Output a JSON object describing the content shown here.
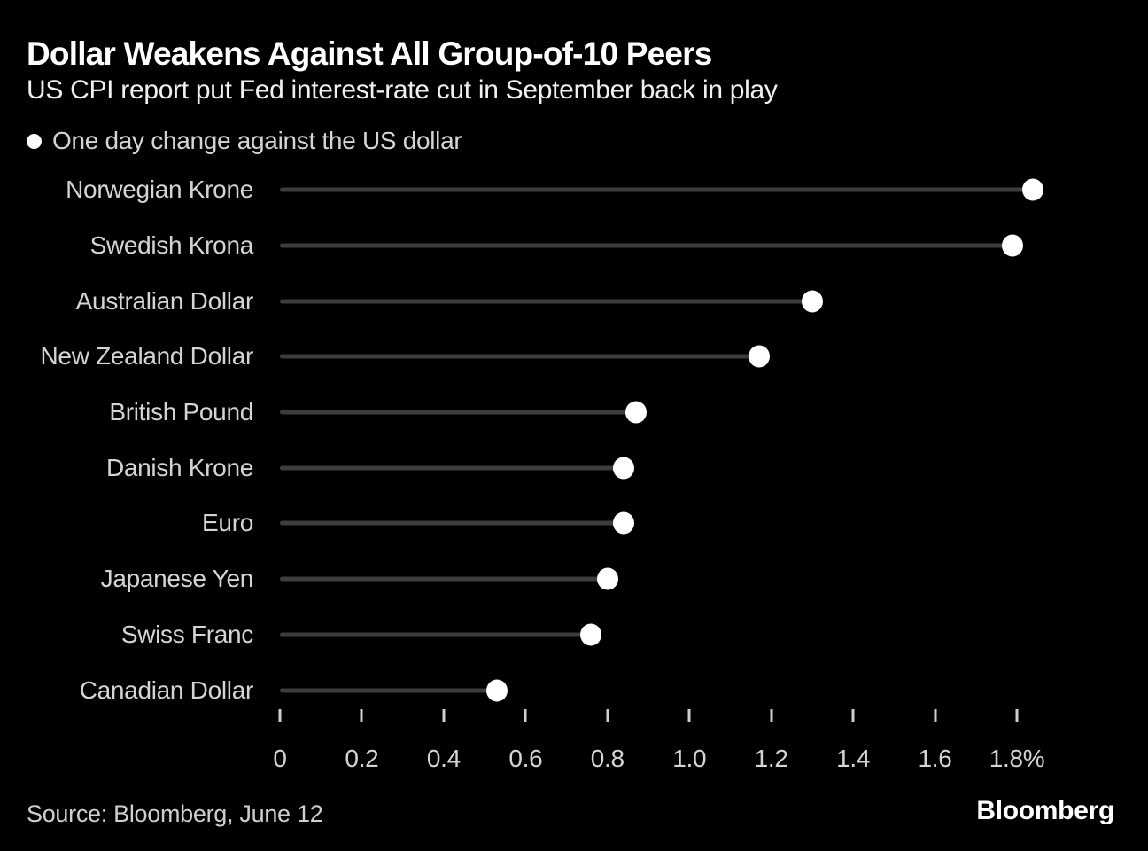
{
  "chart_data": {
    "type": "bar",
    "variant": "horizontal-lollipop-dot",
    "title": "Dollar Weakens Against All Group-of-10 Peers",
    "subtitle": "US CPI report put Fed interest-rate cut in September back in play",
    "legend": "One day change against the US dollar",
    "legend_position": "top-left",
    "categories": [
      "Norwegian Krone",
      "Swedish Krona",
      "Australian Dollar",
      "New Zealand Dollar",
      "British Pound",
      "Danish Krone",
      "Euro",
      "Japanese Yen",
      "Swiss Franc",
      "Canadian Dollar"
    ],
    "values": [
      1.84,
      1.79,
      1.3,
      1.17,
      0.87,
      0.84,
      0.84,
      0.8,
      0.76,
      0.53
    ],
    "unit": "%",
    "xlabel": "",
    "ylabel": "",
    "xlim": [
      0,
      1.8
    ],
    "x_tick_values": [
      0,
      0.2,
      0.4,
      0.6,
      0.8,
      1.0,
      1.2,
      1.4,
      1.6,
      1.8
    ],
    "x_tick_labels": [
      "0",
      "0.2",
      "0.4",
      "0.6",
      "0.8",
      "1.0",
      "1.2",
      "1.4",
      "1.6",
      "1.8%"
    ],
    "grid": false
  },
  "footer": {
    "source": "Source: Bloomberg, June 12",
    "brand": "Bloomberg"
  },
  "colors": {
    "background": "#000000",
    "title": "#ffffff",
    "subtitle": "#f0f0f0",
    "label_gray": "#d4d4d4",
    "source_gray": "#cfcfcf",
    "stem_line": "#3d3d3d",
    "dot": "#ffffff",
    "tick": "#cfcfcf"
  }
}
